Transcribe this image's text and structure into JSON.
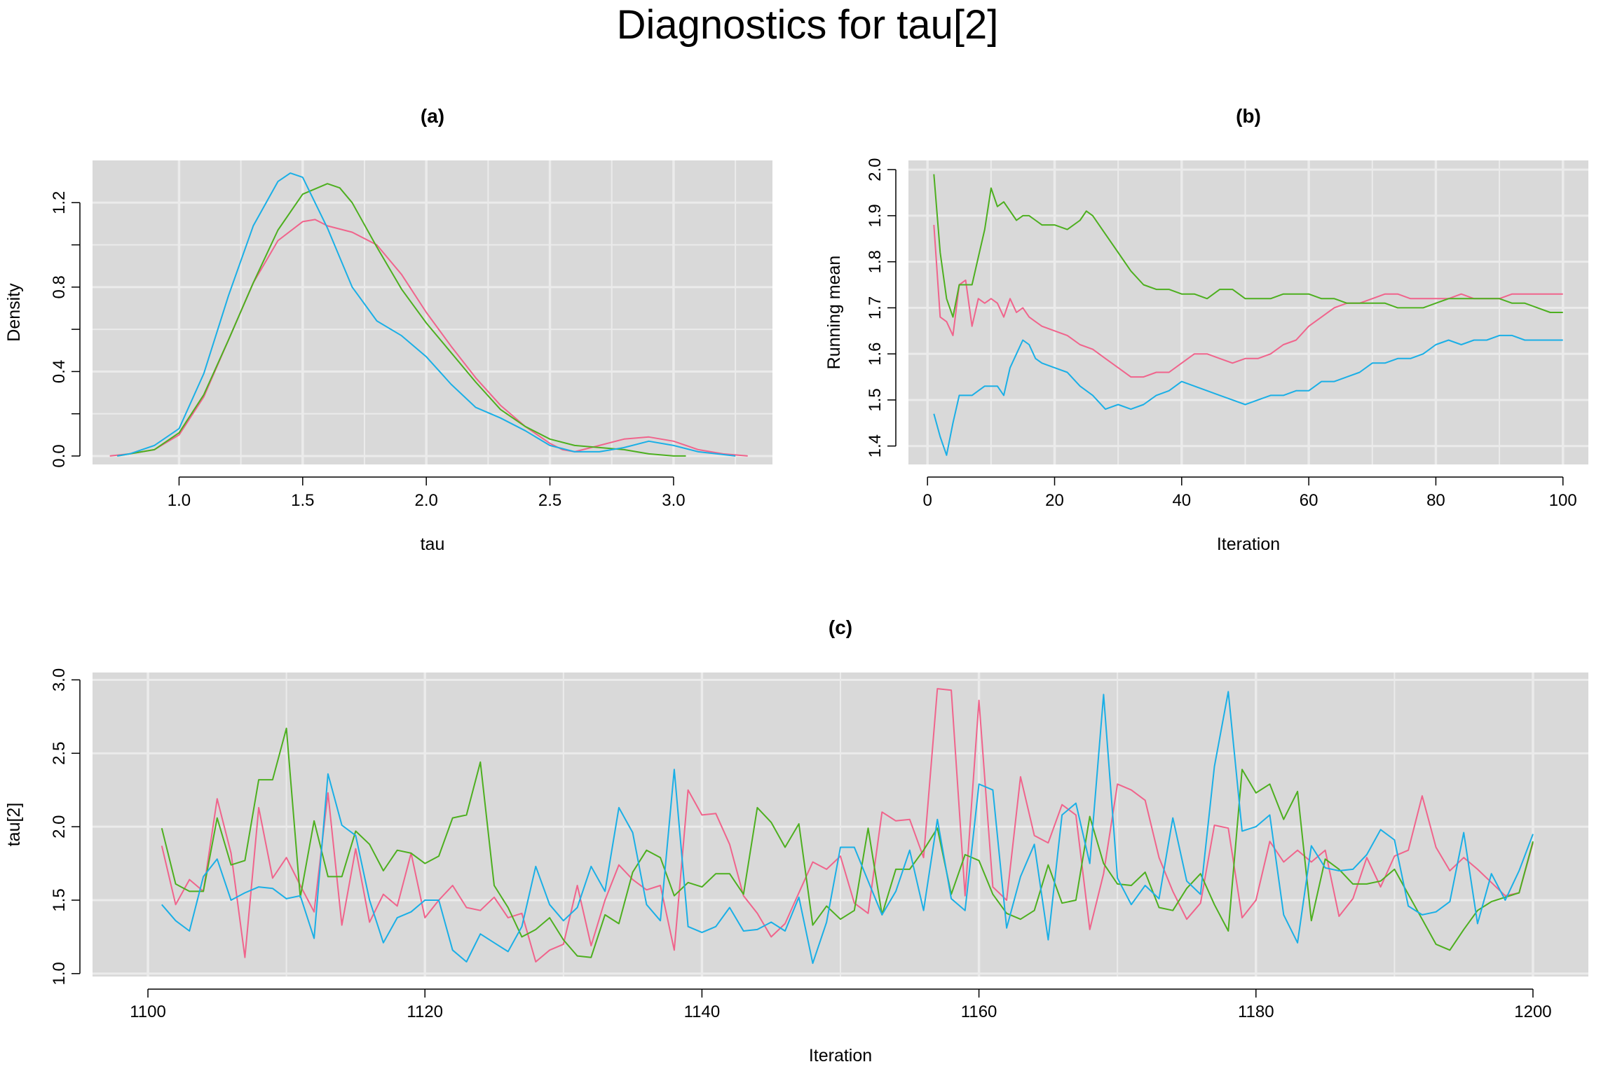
{
  "figure": {
    "title": "Diagnostics for tau[2]"
  },
  "colors": {
    "series": [
      "#F0648C",
      "#4DAF1F",
      "#1AAFE6"
    ],
    "panel_bg": "#D9D9D9",
    "grid": "#EBEBEB"
  },
  "chart_data": [
    {
      "type": "line",
      "title": "(a)",
      "xlabel": "tau",
      "ylabel": "Density",
      "xlim": [
        0.65,
        3.4
      ],
      "ylim": [
        -0.04,
        1.4
      ],
      "xticks": [
        1.0,
        1.5,
        2.0,
        2.5,
        3.0
      ],
      "xtick_labels": [
        "1.0",
        "1.5",
        "2.0",
        "2.5",
        "3.0"
      ],
      "yticks": [
        0.0,
        0.4,
        0.8,
        1.2
      ],
      "ytick_labels": [
        "0.0",
        "0.4",
        "0.8",
        "1.2"
      ],
      "ytick_minor": [
        0.2,
        0.6,
        1.0
      ],
      "xgrid_minor": [
        1.25,
        1.75,
        2.25,
        2.75,
        3.25
      ],
      "grid": true,
      "legend": "none",
      "series": [
        {
          "x": [
            0.72,
            0.8,
            0.9,
            1.0,
            1.1,
            1.2,
            1.3,
            1.4,
            1.5,
            1.55,
            1.6,
            1.7,
            1.8,
            1.9,
            2.0,
            2.1,
            2.2,
            2.3,
            2.4,
            2.5,
            2.55,
            2.6,
            2.7,
            2.8,
            2.9,
            3.0,
            3.1,
            3.2,
            3.3
          ],
          "y": [
            0.0,
            0.01,
            0.03,
            0.1,
            0.28,
            0.55,
            0.82,
            1.02,
            1.11,
            1.12,
            1.09,
            1.06,
            1.0,
            0.86,
            0.68,
            0.52,
            0.37,
            0.24,
            0.14,
            0.06,
            0.03,
            0.02,
            0.05,
            0.08,
            0.09,
            0.07,
            0.03,
            0.01,
            0.0
          ]
        },
        {
          "x": [
            0.75,
            0.8,
            0.9,
            1.0,
            1.1,
            1.2,
            1.3,
            1.4,
            1.5,
            1.6,
            1.65,
            1.7,
            1.8,
            1.9,
            2.0,
            2.1,
            2.2,
            2.3,
            2.4,
            2.5,
            2.6,
            2.7,
            2.8,
            2.9,
            3.0,
            3.05
          ],
          "y": [
            0.0,
            0.01,
            0.03,
            0.11,
            0.29,
            0.55,
            0.82,
            1.07,
            1.24,
            1.29,
            1.27,
            1.2,
            0.99,
            0.79,
            0.63,
            0.49,
            0.35,
            0.22,
            0.14,
            0.08,
            0.05,
            0.04,
            0.03,
            0.01,
            0.0,
            0.0
          ]
        },
        {
          "x": [
            0.75,
            0.8,
            0.9,
            1.0,
            1.1,
            1.2,
            1.3,
            1.4,
            1.45,
            1.5,
            1.6,
            1.7,
            1.8,
            1.9,
            2.0,
            2.1,
            2.2,
            2.3,
            2.4,
            2.5,
            2.6,
            2.7,
            2.8,
            2.9,
            3.0,
            3.1,
            3.25
          ],
          "y": [
            0.0,
            0.01,
            0.05,
            0.13,
            0.39,
            0.76,
            1.09,
            1.3,
            1.34,
            1.32,
            1.08,
            0.8,
            0.64,
            0.57,
            0.47,
            0.34,
            0.23,
            0.18,
            0.12,
            0.05,
            0.02,
            0.02,
            0.04,
            0.07,
            0.05,
            0.02,
            0.0
          ]
        }
      ]
    },
    {
      "type": "line",
      "title": "(b)",
      "xlabel": "Iteration",
      "ylabel": "Running mean",
      "xlim": [
        -3,
        104
      ],
      "ylim": [
        1.36,
        2.02
      ],
      "xticks": [
        0,
        20,
        40,
        60,
        80,
        100
      ],
      "xtick_labels": [
        "0",
        "20",
        "40",
        "60",
        "80",
        "100"
      ],
      "yticks": [
        1.4,
        1.5,
        1.6,
        1.7,
        1.8,
        1.9,
        2.0
      ],
      "ytick_labels": [
        "1.4",
        "1.5",
        "1.6",
        "1.7",
        "1.8",
        "1.9",
        "2.0"
      ],
      "xgrid_minor": [
        10,
        30,
        50,
        70,
        90
      ],
      "grid": true,
      "legend": "none",
      "series": [
        {
          "x": [
            1,
            2,
            3,
            4,
            5,
            6,
            7,
            8,
            9,
            10,
            11,
            12,
            13,
            14,
            15,
            16,
            17,
            18,
            20,
            22,
            24,
            26,
            28,
            30,
            32,
            34,
            36,
            38,
            40,
            42,
            44,
            46,
            48,
            50,
            52,
            54,
            56,
            58,
            60,
            62,
            64,
            66,
            68,
            70,
            72,
            74,
            76,
            78,
            80,
            82,
            84,
            86,
            88,
            90,
            92,
            94,
            96,
            98,
            100
          ],
          "y": [
            1.88,
            1.68,
            1.67,
            1.64,
            1.75,
            1.76,
            1.66,
            1.72,
            1.71,
            1.72,
            1.71,
            1.68,
            1.72,
            1.69,
            1.7,
            1.68,
            1.67,
            1.66,
            1.65,
            1.64,
            1.62,
            1.61,
            1.59,
            1.57,
            1.55,
            1.55,
            1.56,
            1.56,
            1.58,
            1.6,
            1.6,
            1.59,
            1.58,
            1.59,
            1.59,
            1.6,
            1.62,
            1.63,
            1.66,
            1.68,
            1.7,
            1.71,
            1.71,
            1.72,
            1.73,
            1.73,
            1.72,
            1.72,
            1.72,
            1.72,
            1.73,
            1.72,
            1.72,
            1.72,
            1.73,
            1.73,
            1.73,
            1.73,
            1.73
          ]
        },
        {
          "x": [
            1,
            2,
            3,
            4,
            5,
            6,
            7,
            8,
            9,
            10,
            11,
            12,
            13,
            14,
            15,
            16,
            17,
            18,
            20,
            22,
            24,
            25,
            26,
            28,
            30,
            32,
            34,
            36,
            38,
            40,
            42,
            44,
            46,
            48,
            50,
            52,
            54,
            56,
            58,
            60,
            62,
            64,
            66,
            68,
            70,
            72,
            74,
            76,
            78,
            80,
            82,
            84,
            86,
            88,
            90,
            92,
            94,
            96,
            98,
            100
          ],
          "y": [
            1.99,
            1.82,
            1.72,
            1.68,
            1.75,
            1.75,
            1.75,
            1.81,
            1.87,
            1.96,
            1.92,
            1.93,
            1.91,
            1.89,
            1.9,
            1.9,
            1.89,
            1.88,
            1.88,
            1.87,
            1.89,
            1.91,
            1.9,
            1.86,
            1.82,
            1.78,
            1.75,
            1.74,
            1.74,
            1.73,
            1.73,
            1.72,
            1.74,
            1.74,
            1.72,
            1.72,
            1.72,
            1.73,
            1.73,
            1.73,
            1.72,
            1.72,
            1.71,
            1.71,
            1.71,
            1.71,
            1.7,
            1.7,
            1.7,
            1.71,
            1.72,
            1.72,
            1.72,
            1.72,
            1.72,
            1.71,
            1.71,
            1.7,
            1.69,
            1.69
          ]
        },
        {
          "x": [
            1,
            2,
            3,
            4,
            5,
            6,
            7,
            8,
            9,
            10,
            11,
            12,
            13,
            14,
            15,
            16,
            17,
            18,
            20,
            22,
            24,
            26,
            28,
            30,
            32,
            34,
            36,
            38,
            40,
            42,
            44,
            46,
            48,
            50,
            52,
            54,
            56,
            58,
            60,
            62,
            64,
            66,
            68,
            70,
            72,
            74,
            76,
            78,
            80,
            82,
            84,
            86,
            88,
            90,
            92,
            94,
            96,
            98,
            100
          ],
          "y": [
            1.47,
            1.42,
            1.38,
            1.45,
            1.51,
            1.51,
            1.51,
            1.52,
            1.53,
            1.53,
            1.53,
            1.51,
            1.57,
            1.6,
            1.63,
            1.62,
            1.59,
            1.58,
            1.57,
            1.56,
            1.53,
            1.51,
            1.48,
            1.49,
            1.48,
            1.49,
            1.51,
            1.52,
            1.54,
            1.53,
            1.52,
            1.51,
            1.5,
            1.49,
            1.5,
            1.51,
            1.51,
            1.52,
            1.52,
            1.54,
            1.54,
            1.55,
            1.56,
            1.58,
            1.58,
            1.59,
            1.59,
            1.6,
            1.62,
            1.63,
            1.62,
            1.63,
            1.63,
            1.64,
            1.64,
            1.63,
            1.63,
            1.63,
            1.63
          ]
        }
      ]
    },
    {
      "type": "line",
      "title": "(c)",
      "xlabel": "Iteration",
      "ylabel": "tau[2]",
      "xlim": [
        1096,
        1204
      ],
      "ylim": [
        0.98,
        3.05
      ],
      "xticks": [
        1100,
        1120,
        1140,
        1160,
        1180,
        1200
      ],
      "xtick_labels": [
        "1100",
        "1120",
        "1140",
        "1160",
        "1180",
        "1200"
      ],
      "yticks": [
        1.0,
        1.5,
        2.0,
        2.5,
        3.0
      ],
      "ytick_labels": [
        "1.0",
        "1.5",
        "2.0",
        "2.5",
        "3.0"
      ],
      "xgrid_minor": [
        1110,
        1130,
        1150,
        1170,
        1190
      ],
      "grid": true,
      "legend": "none",
      "series": [
        {
          "x_start": 1101,
          "y": [
            1.87,
            1.47,
            1.64,
            1.56,
            2.19,
            1.82,
            1.11,
            2.13,
            1.65,
            1.79,
            1.6,
            1.42,
            2.23,
            1.33,
            1.85,
            1.35,
            1.54,
            1.46,
            1.82,
            1.38,
            1.5,
            1.6,
            1.45,
            1.43,
            1.52,
            1.38,
            1.41,
            1.08,
            1.16,
            1.2,
            1.6,
            1.19,
            1.5,
            1.74,
            1.64,
            1.57,
            1.6,
            1.16,
            2.25,
            2.08,
            2.09,
            1.88,
            1.53,
            1.41,
            1.25,
            1.34,
            1.55,
            1.76,
            1.71,
            1.8,
            1.48,
            1.41,
            2.1,
            2.04,
            2.05,
            1.79,
            2.94,
            2.93,
            1.53,
            2.86,
            1.59,
            1.5,
            2.34,
            1.94,
            1.89,
            2.15,
            2.08,
            1.3,
            1.68,
            2.29,
            2.25,
            2.18,
            1.79,
            1.56,
            1.37,
            1.48,
            2.01,
            1.99,
            1.38,
            1.5,
            1.9,
            1.76,
            1.84,
            1.76,
            1.84,
            1.39,
            1.51,
            1.79,
            1.59,
            1.8,
            1.84,
            2.21,
            1.86,
            1.7,
            1.79,
            1.71,
            1.62,
            1.53,
            1.55,
            1.89
          ]
        },
        {
          "x_start": 1101,
          "y": [
            1.99,
            1.61,
            1.56,
            1.56,
            2.06,
            1.74,
            1.77,
            2.32,
            2.32,
            2.67,
            1.52,
            2.04,
            1.66,
            1.66,
            1.97,
            1.88,
            1.7,
            1.84,
            1.82,
            1.75,
            1.8,
            2.06,
            2.08,
            2.44,
            1.6,
            1.45,
            1.25,
            1.3,
            1.38,
            1.23,
            1.12,
            1.11,
            1.4,
            1.34,
            1.69,
            1.84,
            1.79,
            1.53,
            1.62,
            1.59,
            1.68,
            1.68,
            1.54,
            2.13,
            2.03,
            1.86,
            2.02,
            1.33,
            1.46,
            1.37,
            1.43,
            1.99,
            1.4,
            1.71,
            1.71,
            1.84,
            1.99,
            1.54,
            1.81,
            1.77,
            1.54,
            1.41,
            1.37,
            1.43,
            1.74,
            1.48,
            1.5,
            2.07,
            1.75,
            1.61,
            1.6,
            1.69,
            1.45,
            1.43,
            1.58,
            1.68,
            1.47,
            1.29,
            2.39,
            2.23,
            2.29,
            2.05,
            2.24,
            1.36,
            1.78,
            1.71,
            1.61,
            1.61,
            1.63,
            1.71,
            1.54,
            1.37,
            1.2,
            1.16,
            1.3,
            1.43,
            1.49,
            1.52,
            1.55,
            1.9
          ]
        },
        {
          "x_start": 1101,
          "y": [
            1.47,
            1.36,
            1.29,
            1.66,
            1.78,
            1.5,
            1.55,
            1.59,
            1.58,
            1.51,
            1.53,
            1.24,
            2.36,
            2.01,
            1.94,
            1.5,
            1.21,
            1.38,
            1.42,
            1.5,
            1.5,
            1.16,
            1.08,
            1.27,
            1.21,
            1.15,
            1.32,
            1.73,
            1.47,
            1.36,
            1.45,
            1.73,
            1.56,
            2.13,
            1.96,
            1.47,
            1.36,
            2.39,
            1.32,
            1.28,
            1.32,
            1.45,
            1.29,
            1.3,
            1.35,
            1.29,
            1.52,
            1.07,
            1.35,
            1.86,
            1.86,
            1.63,
            1.4,
            1.56,
            1.84,
            1.43,
            2.05,
            1.51,
            1.43,
            2.29,
            2.25,
            1.31,
            1.66,
            1.88,
            1.23,
            2.08,
            2.16,
            1.75,
            2.9,
            1.65,
            1.47,
            1.6,
            1.51,
            2.06,
            1.63,
            1.54,
            2.41,
            2.92,
            1.97,
            2.0,
            2.08,
            1.4,
            1.21,
            1.87,
            1.72,
            1.7,
            1.71,
            1.81,
            1.98,
            1.91,
            1.46,
            1.4,
            1.42,
            1.49,
            1.96,
            1.34,
            1.68,
            1.5,
            1.7,
            1.95
          ]
        }
      ]
    }
  ]
}
